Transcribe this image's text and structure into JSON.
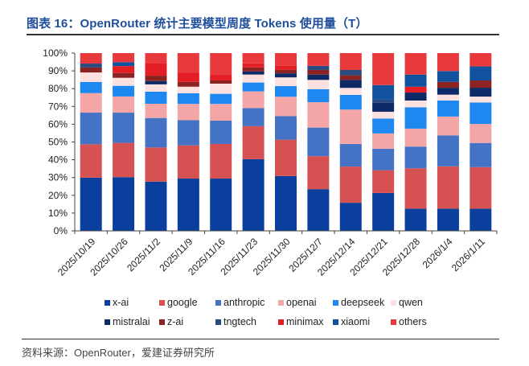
{
  "title": "图表 16：OpenRouter 统计主要模型周度 Tokens 使用量（T）",
  "source": "资料来源：OpenRouter，爱建证券研究所",
  "chart_data": {
    "type": "bar",
    "stacked": "percent",
    "title": "OpenRouter 统计主要模型周度 Tokens 使用量（T）",
    "xlabel": "",
    "ylabel": "",
    "ylim": [
      0,
      100
    ],
    "yticks": [
      "0%",
      "10%",
      "20%",
      "30%",
      "40%",
      "50%",
      "60%",
      "70%",
      "80%",
      "90%",
      "100%"
    ],
    "grid": false,
    "legend_position": "bottom",
    "categories": [
      "2025/10/19",
      "2025/10/26",
      "2025/11/2",
      "2025/11/9",
      "2025/11/16",
      "2025/11/23",
      "2025/11/30",
      "2025/12/7",
      "2025/12/14",
      "2025/12/21",
      "2025/12/28",
      "2026/1/4",
      "2026/1/11"
    ],
    "series": [
      {
        "name": "x-ai",
        "color": "#0a3f9e",
        "values": [
          29.9,
          30.2,
          27.7,
          29.4,
          29.4,
          40.4,
          30.9,
          23.5,
          15.8,
          21.3,
          12.5,
          12.5,
          12.5
        ]
      },
      {
        "name": "google",
        "color": "#d65252",
        "values": [
          18.8,
          19.3,
          19.2,
          18.7,
          19.5,
          18.6,
          20.5,
          18.6,
          20.4,
          12.8,
          22.7,
          23.8,
          23.4
        ]
      },
      {
        "name": "anthropic",
        "color": "#4472c4",
        "values": [
          17.8,
          17.0,
          16.6,
          14.2,
          13.1,
          10.2,
          13.3,
          16.1,
          12.7,
          12.1,
          12.2,
          17.4,
          13.6
        ]
      },
      {
        "name": "openai",
        "color": "#f4a6a6",
        "values": [
          11.0,
          9.1,
          8.0,
          9.1,
          9.4,
          9.4,
          10.9,
          14.3,
          19.4,
          8.6,
          10.1,
          10.6,
          10.7
        ]
      },
      {
        "name": "deepseek",
        "color": "#1e88f0",
        "values": [
          6.3,
          6.0,
          6.8,
          6.0,
          5.7,
          5.0,
          6.0,
          7.3,
          8.3,
          8.4,
          12.0,
          9.0,
          12.1
        ]
      },
      {
        "name": "qwen",
        "color": "#fde1e1",
        "values": [
          5.3,
          4.5,
          4.1,
          3.7,
          5.7,
          4.5,
          4.9,
          5.3,
          3.9,
          3.8,
          3.8,
          3.3,
          3.3
        ]
      },
      {
        "name": "mistralai",
        "color": "#0d2a66",
        "values": [
          0,
          0,
          1.9,
          0,
          0,
          1.8,
          2.3,
          3.0,
          4.5,
          5.1,
          4.5,
          3.9,
          5.0
        ]
      },
      {
        "name": "z-ai",
        "color": "#8b2323",
        "values": [
          2.8,
          2.7,
          3.0,
          2.7,
          1.8,
          2.2,
          1.9,
          2.6,
          2.6,
          0,
          0,
          3.3,
          4.1
        ]
      },
      {
        "name": "tngtech",
        "color": "#2b4a80",
        "values": [
          2.2,
          0,
          0,
          0,
          0,
          0,
          0,
          2.3,
          3.0,
          1.7,
          0,
          0,
          0
        ]
      },
      {
        "name": "minimax",
        "color": "#e31e24",
        "values": [
          0,
          3.9,
          7.1,
          5.3,
          3.5,
          2.3,
          2.6,
          0,
          0,
          0,
          3.3,
          0,
          0
        ]
      },
      {
        "name": "xiaomi",
        "color": "#11529e",
        "values": [
          0,
          2.2,
          0,
          0,
          0,
          0,
          0,
          0,
          0,
          8.2,
          6.8,
          6.1,
          7.9
        ]
      },
      {
        "name": "others",
        "color": "#e83a3c",
        "values": [
          5.9,
          5.1,
          5.6,
          10.9,
          11.9,
          5.8,
          6.9,
          7.2,
          9.5,
          18.0,
          12.1,
          10.1,
          7.5
        ]
      }
    ]
  }
}
